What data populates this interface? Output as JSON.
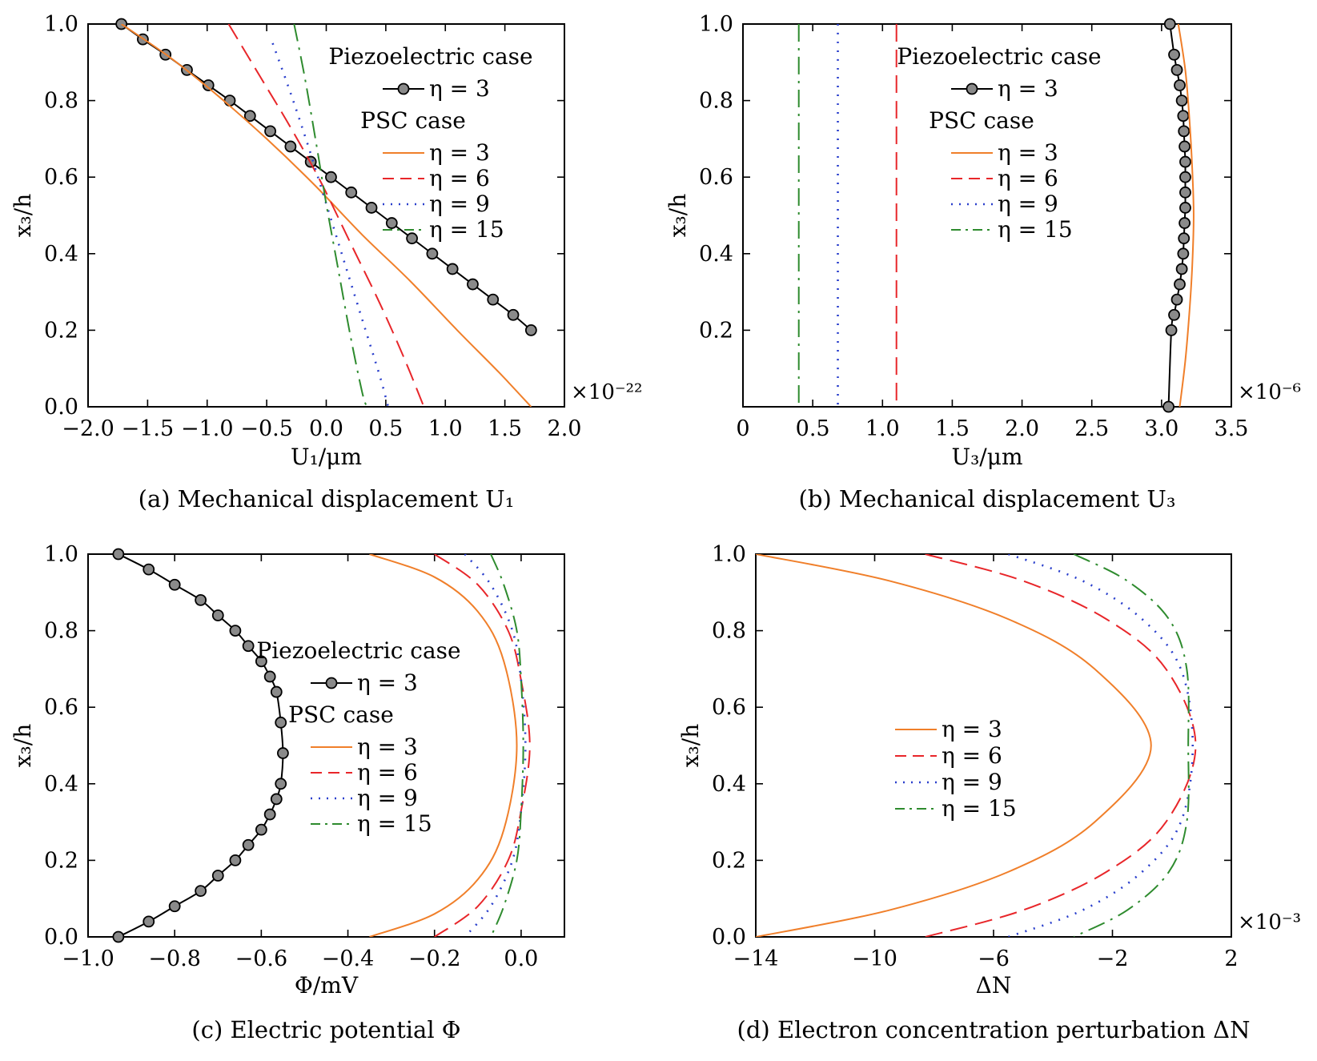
{
  "figure": {
    "panels": [
      {
        "id": "a",
        "caption": "(a) Mechanical displacement U₁",
        "xlabel": "U₁/μm",
        "ylabel": "x₃/h",
        "multiplier": "×10⁻²²",
        "legend": {
          "header1": "Piezoelectric case",
          "header2": "PSC case",
          "entries": [
            "η = 3",
            "η = 3",
            "η = 6",
            "η = 9",
            "η = 15"
          ]
        }
      },
      {
        "id": "b",
        "caption": "(b) Mechanical displacement U₃",
        "xlabel": "U₃/μm",
        "ylabel": "x₃/h",
        "multiplier": "×10⁻⁶",
        "legend": {
          "header1": "Piezoelectric case",
          "header2": "PSC case",
          "entries": [
            "η = 3",
            "η = 3",
            "η = 6",
            "η = 9",
            "η = 15"
          ]
        }
      },
      {
        "id": "c",
        "caption": "(c) Electric potential Φ",
        "xlabel": "Φ/mV",
        "ylabel": "x₃/h",
        "multiplier": "",
        "legend": {
          "header1": "Piezoelectric case",
          "header2": "PSC case",
          "entries": [
            "η = 3",
            "η = 3",
            "η = 6",
            "η = 9",
            "η = 15"
          ]
        }
      },
      {
        "id": "d",
        "caption": "(d) Electron concentration perturbation ΔN",
        "xlabel": "ΔN",
        "ylabel": "x₃/h",
        "multiplier": "×10⁻³",
        "legend": {
          "header1": "",
          "header2": "",
          "entries": [
            "η = 3",
            "η = 6",
            "η = 9",
            "η = 15"
          ]
        }
      }
    ]
  },
  "chart_data": [
    {
      "type": "line",
      "panel": "a",
      "title": "(a) Mechanical displacement U₁",
      "xlabel": "U₁/μm",
      "ylabel": "x₃/h",
      "xlim": [
        -2.0,
        2.0
      ],
      "ylim": [
        0.0,
        1.0
      ],
      "xticks": [
        -2.0,
        -1.5,
        -1.0,
        -0.5,
        0.0,
        0.5,
        1.0,
        1.5,
        2.0
      ],
      "xtick_labels": [
        "−2.0",
        "−1.5",
        "−1.0",
        "−0.5",
        "0.0",
        "0.5",
        "1.0",
        "1.5",
        "2.0"
      ],
      "yticks": [
        0.0,
        0.2,
        0.4,
        0.6,
        0.8,
        1.0
      ],
      "ytick_labels": [
        "0.0",
        "0.2",
        "0.4",
        "0.6",
        "0.8",
        "1.0"
      ],
      "x_multiplier": "×10⁻²²",
      "legend_position": "upper-right",
      "series": [
        {
          "name": "η = 3",
          "group": "Piezoelectric case",
          "style": "markers",
          "color": "#000000",
          "x": [
            -1.72,
            -1.54,
            -1.35,
            -1.17,
            -0.99,
            -0.81,
            -0.64,
            -0.47,
            -0.3,
            -0.13,
            0.04,
            0.21,
            0.38,
            0.55,
            0.72,
            0.89,
            1.06,
            1.23,
            1.4,
            1.57,
            1.72
          ],
          "y": [
            1.0,
            0.96,
            0.92,
            0.88,
            0.84,
            0.8,
            0.76,
            0.72,
            0.68,
            0.64,
            0.6,
            0.56,
            0.52,
            0.48,
            0.44,
            0.4,
            0.36,
            0.32,
            0.28,
            0.24,
            0.2
          ]
        },
        {
          "name": "η = 3",
          "group": "PSC case",
          "style": "solid",
          "color": "#f07f2a",
          "x": [
            -1.72,
            -1.3,
            -0.9,
            -0.5,
            -0.1,
            0.3,
            0.7,
            1.1,
            1.45,
            1.72
          ],
          "y": [
            1.0,
            0.91,
            0.81,
            0.7,
            0.58,
            0.45,
            0.33,
            0.2,
            0.09,
            0.0
          ]
        },
        {
          "name": "η = 6",
          "group": "PSC case",
          "style": "dashed",
          "color": "#e8262a",
          "x": [
            -0.82,
            -0.55,
            -0.3,
            -0.05,
            0.2,
            0.45,
            0.65,
            0.82
          ],
          "y": [
            1.0,
            0.86,
            0.73,
            0.59,
            0.43,
            0.27,
            0.13,
            0.0
          ]
        },
        {
          "name": "η = 9",
          "group": "PSC case",
          "style": "dotted",
          "color": "#2a3fcc",
          "x": [
            -0.45,
            -0.3,
            -0.15,
            0.0,
            0.15,
            0.3,
            0.45,
            0.52
          ],
          "y": [
            0.95,
            0.82,
            0.68,
            0.53,
            0.38,
            0.23,
            0.08,
            0.0
          ]
        },
        {
          "name": "η = 15",
          "group": "PSC case",
          "style": "dashdot",
          "color": "#2e8b2e",
          "x": [
            -0.27,
            -0.18,
            -0.08,
            0.0,
            0.1,
            0.2,
            0.3,
            0.34
          ],
          "y": [
            1.0,
            0.86,
            0.68,
            0.53,
            0.36,
            0.19,
            0.04,
            0.0
          ]
        }
      ]
    },
    {
      "type": "line",
      "panel": "b",
      "title": "(b) Mechanical displacement U₃",
      "xlabel": "U₃/μm",
      "ylabel": "x₃/h",
      "xlim": [
        0.0,
        3.5
      ],
      "ylim": [
        0.0,
        1.0
      ],
      "xticks": [
        0.0,
        0.5,
        1.0,
        1.5,
        2.0,
        2.5,
        3.0,
        3.5
      ],
      "xtick_labels": [
        "0",
        "0.5",
        "1.0",
        "1.5",
        "2.0",
        "2.5",
        "3.0",
        "3.5"
      ],
      "yticks": [
        0.2,
        0.4,
        0.6,
        0.8,
        1.0
      ],
      "ytick_labels": [
        "0.2",
        "0.4",
        "0.6",
        "0.8",
        "1.0"
      ],
      "x_multiplier": "×10⁻⁶",
      "legend_position": "upper-center",
      "series": [
        {
          "name": "η = 3",
          "group": "Piezoelectric case",
          "style": "markers",
          "color": "#000000",
          "x": [
            3.06,
            3.09,
            3.11,
            3.13,
            3.145,
            3.155,
            3.16,
            3.165,
            3.17,
            3.17,
            3.17,
            3.17,
            3.165,
            3.16,
            3.155,
            3.145,
            3.13,
            3.11,
            3.09,
            3.07,
            3.05
          ],
          "y": [
            1.0,
            0.92,
            0.88,
            0.84,
            0.8,
            0.76,
            0.72,
            0.68,
            0.64,
            0.6,
            0.56,
            0.52,
            0.48,
            0.44,
            0.4,
            0.36,
            0.32,
            0.28,
            0.24,
            0.2,
            0.0
          ]
        },
        {
          "name": "η = 3",
          "group": "PSC case",
          "style": "solid",
          "color": "#f07f2a",
          "x": [
            3.12,
            3.17,
            3.2,
            3.22,
            3.23,
            3.22,
            3.2,
            3.17,
            3.13
          ],
          "y": [
            1.0,
            0.88,
            0.75,
            0.62,
            0.5,
            0.37,
            0.25,
            0.12,
            0.0
          ]
        },
        {
          "name": "η = 6",
          "group": "PSC case",
          "style": "dashed",
          "color": "#e8262a",
          "x": [
            1.1,
            1.1,
            1.1,
            1.1,
            1.1
          ],
          "y": [
            1.0,
            0.75,
            0.5,
            0.25,
            0.0
          ]
        },
        {
          "name": "η = 9",
          "group": "PSC case",
          "style": "dotted",
          "color": "#2a3fcc",
          "x": [
            0.68,
            0.68,
            0.68,
            0.68,
            0.68
          ],
          "y": [
            1.0,
            0.75,
            0.5,
            0.25,
            0.0
          ]
        },
        {
          "name": "η = 15",
          "group": "PSC case",
          "style": "dashdot",
          "color": "#2e8b2e",
          "x": [
            0.4,
            0.4,
            0.4,
            0.4,
            0.4
          ],
          "y": [
            1.0,
            0.75,
            0.5,
            0.25,
            0.0
          ]
        }
      ]
    },
    {
      "type": "line",
      "panel": "c",
      "title": "(c) Electric potential Φ",
      "xlabel": "Φ/mV",
      "ylabel": "x₃/h",
      "xlim": [
        -1.0,
        0.1
      ],
      "ylim": [
        0.0,
        1.0
      ],
      "xticks": [
        -1.0,
        -0.8,
        -0.6,
        -0.4,
        -0.2,
        0.0
      ],
      "xtick_labels": [
        "−1.0",
        "−0.8",
        "−0.6",
        "−0.4",
        "−0.2",
        "0.0"
      ],
      "yticks": [
        0.0,
        0.2,
        0.4,
        0.6,
        0.8,
        1.0
      ],
      "ytick_labels": [
        "0.0",
        "0.2",
        "0.4",
        "0.6",
        "0.8",
        "1.0"
      ],
      "x_multiplier": "",
      "legend_position": "center",
      "series": [
        {
          "name": "η = 3",
          "group": "Piezoelectric case",
          "style": "markers",
          "color": "#000000",
          "x": [
            -0.93,
            -0.86,
            -0.8,
            -0.74,
            -0.7,
            -0.66,
            -0.63,
            -0.6,
            -0.58,
            -0.565,
            -0.555,
            -0.55,
            -0.555,
            -0.565,
            -0.58,
            -0.6,
            -0.63,
            -0.66,
            -0.7,
            -0.74,
            -0.8,
            -0.86,
            -0.93
          ],
          "y": [
            1.0,
            0.96,
            0.92,
            0.88,
            0.84,
            0.8,
            0.76,
            0.72,
            0.68,
            0.64,
            0.56,
            0.48,
            0.4,
            0.36,
            0.32,
            0.28,
            0.24,
            0.2,
            0.16,
            0.12,
            0.08,
            0.04,
            0.0
          ]
        },
        {
          "name": "η = 3",
          "group": "PSC case",
          "style": "solid",
          "color": "#f07f2a",
          "x": [
            -0.35,
            -0.2,
            -0.1,
            -0.04,
            -0.01,
            -0.04,
            -0.1,
            -0.2,
            -0.35
          ],
          "y": [
            1.0,
            0.94,
            0.85,
            0.72,
            0.5,
            0.28,
            0.15,
            0.06,
            0.0
          ]
        },
        {
          "name": "η = 6",
          "group": "PSC case",
          "style": "dashed",
          "color": "#e8262a",
          "x": [
            -0.2,
            -0.1,
            -0.03,
            0.0,
            0.02,
            0.0,
            -0.03,
            -0.1,
            -0.2
          ],
          "y": [
            1.0,
            0.92,
            0.8,
            0.67,
            0.5,
            0.33,
            0.2,
            0.08,
            0.0
          ]
        },
        {
          "name": "η = 9",
          "group": "PSC case",
          "style": "dotted",
          "color": "#2a3fcc",
          "x": [
            -0.13,
            -0.07,
            -0.02,
            0.0,
            0.01,
            0.0,
            -0.02,
            -0.07,
            -0.13
          ],
          "y": [
            1.0,
            0.92,
            0.8,
            0.67,
            0.5,
            0.33,
            0.2,
            0.08,
            0.0
          ]
        },
        {
          "name": "η = 15",
          "group": "PSC case",
          "style": "dashdot",
          "color": "#2e8b2e",
          "x": [
            -0.07,
            -0.04,
            -0.01,
            0.0,
            0.005,
            0.0,
            -0.01,
            -0.04,
            -0.07
          ],
          "y": [
            1.0,
            0.92,
            0.8,
            0.67,
            0.5,
            0.33,
            0.2,
            0.08,
            0.0
          ]
        }
      ]
    },
    {
      "type": "line",
      "panel": "d",
      "title": "(d) Electron concentration perturbation ΔN",
      "xlabel": "ΔN",
      "ylabel": "x₃/h",
      "xlim": [
        -14,
        2
      ],
      "ylim": [
        0.0,
        1.0
      ],
      "xticks": [
        -14,
        -10,
        -6,
        -2,
        2
      ],
      "xtick_labels": [
        "−14",
        "−10",
        "−6",
        "−2",
        "2"
      ],
      "yticks": [
        0.0,
        0.2,
        0.4,
        0.6,
        0.8,
        1.0
      ],
      "ytick_labels": [
        "0.0",
        "0.2",
        "0.4",
        "0.6",
        "0.8",
        "1.0"
      ],
      "x_multiplier": "×10⁻³",
      "legend_position": "center-left",
      "series": [
        {
          "name": "η = 3",
          "style": "solid",
          "color": "#f07f2a",
          "x": [
            -14,
            -9.5,
            -5.5,
            -2.6,
            -0.7,
            -2.6,
            -5.5,
            -9.5,
            -14
          ],
          "y": [
            1.0,
            0.93,
            0.83,
            0.7,
            0.5,
            0.3,
            0.17,
            0.07,
            0.0
          ]
        },
        {
          "name": "η = 6",
          "style": "dashed",
          "color": "#e8262a",
          "x": [
            -8.3,
            -5.0,
            -2.2,
            -0.2,
            0.8,
            -0.2,
            -2.2,
            -5.0,
            -8.3
          ],
          "y": [
            1.0,
            0.93,
            0.83,
            0.7,
            0.5,
            0.3,
            0.17,
            0.07,
            0.0
          ]
        },
        {
          "name": "η = 9",
          "style": "dotted",
          "color": "#2a3fcc",
          "x": [
            -5.5,
            -3.0,
            -1.0,
            0.3,
            0.7,
            0.3,
            -1.0,
            -3.0,
            -5.5
          ],
          "y": [
            1.0,
            0.93,
            0.83,
            0.7,
            0.5,
            0.3,
            0.17,
            0.07,
            0.0
          ]
        },
        {
          "name": "η = 15",
          "style": "dashdot",
          "color": "#2e8b2e",
          "x": [
            -3.3,
            -1.5,
            -0.1,
            0.5,
            0.55,
            0.5,
            -0.1,
            -1.5,
            -3.3
          ],
          "y": [
            1.0,
            0.93,
            0.83,
            0.7,
            0.5,
            0.3,
            0.17,
            0.07,
            0.0
          ]
        }
      ]
    }
  ]
}
